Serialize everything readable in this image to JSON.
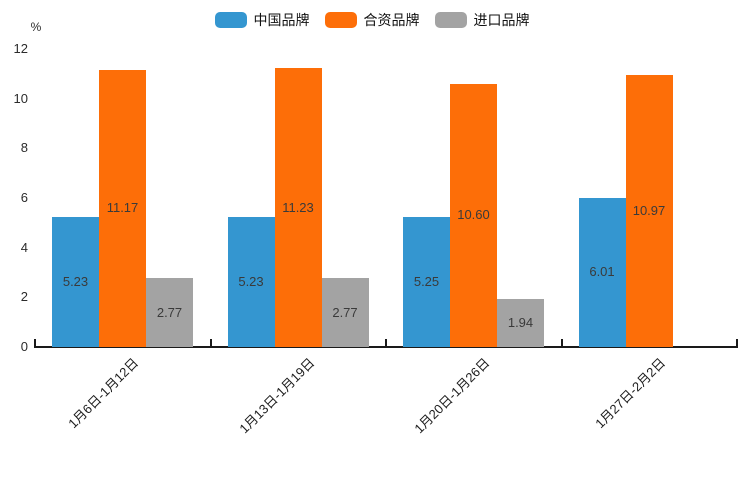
{
  "chart_data": {
    "type": "bar",
    "title": "",
    "unit_label": "%",
    "categories": [
      "1月6日-1月12日",
      "1月13日-1月19日",
      "1月20日-1月26日",
      "1月27日-2月2日"
    ],
    "series": [
      {
        "name": "中国品牌",
        "color": "#3496d0",
        "values": [
          5.23,
          5.23,
          5.25,
          6.01
        ],
        "labels": [
          "5.23",
          "5.23",
          "5.25",
          "6.01"
        ]
      },
      {
        "name": "合资品牌",
        "color": "#fd6e08",
        "values": [
          11.17,
          11.23,
          10.6,
          10.97
        ],
        "labels": [
          "11.17",
          "11.23",
          "10.60",
          "10.97"
        ]
      },
      {
        "name": "进口品牌",
        "color": "#a3a3a3",
        "values": [
          2.77,
          2.77,
          1.94,
          null
        ],
        "labels": [
          "2.77",
          "2.77",
          "1.94",
          null
        ]
      }
    ],
    "ylim": [
      0,
      12
    ],
    "yticks": [
      "0",
      "2",
      "4",
      "6",
      "8",
      "10",
      "12"
    ],
    "legend_position": "top",
    "grid": false,
    "value_labels_inside_bars": true,
    "axis_color": "#1a1a1a"
  }
}
